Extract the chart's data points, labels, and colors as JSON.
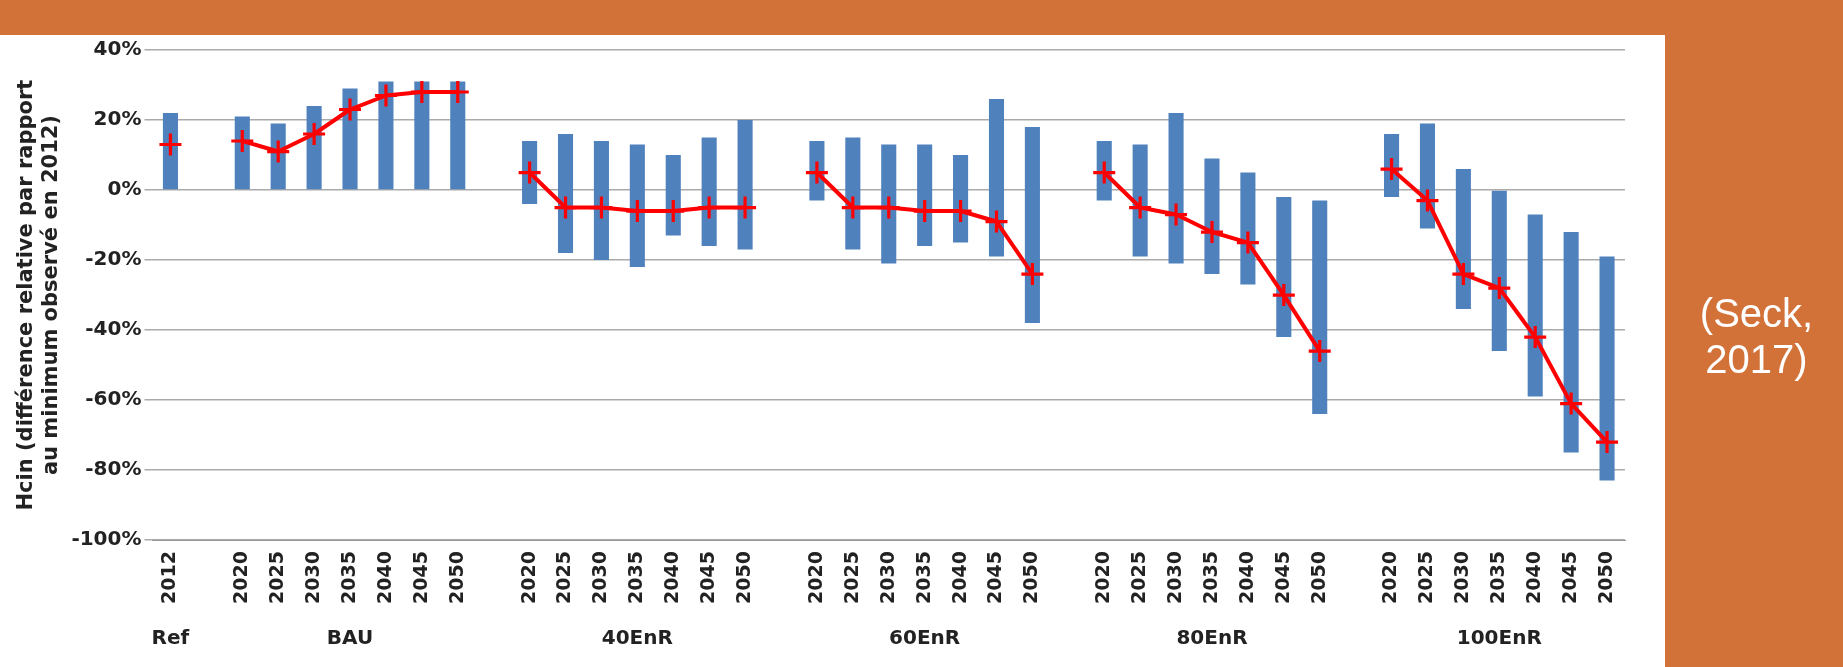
{
  "chart_data": {
    "type": "bar",
    "ylabel": "Hcin (différence relative par rapport\nau minimum observé en 2012)",
    "categories": [
      "2012",
      null,
      "2020",
      "2025",
      "2030",
      "2035",
      "2040",
      "2045",
      "2050",
      null,
      "2020",
      "2025",
      "2030",
      "2035",
      "2040",
      "2045",
      "2050",
      null,
      "2020",
      "2025",
      "2030",
      "2035",
      "2040",
      "2045",
      "2050",
      null,
      "2020",
      "2025",
      "2030",
      "2035",
      "2040",
      "2045",
      "2050",
      null,
      "2020",
      "2025",
      "2030",
      "2035",
      "2040",
      "2045",
      "2050"
    ],
    "series": [
      {
        "color": "#4f81bd",
        "base": [
          0,
          null,
          0,
          0,
          0,
          0,
          0,
          0,
          0,
          null,
          -4,
          -18,
          -20,
          -22,
          -13,
          -16,
          -17,
          null,
          -3,
          -17,
          -21,
          -16,
          -15,
          -19,
          -38,
          null,
          -3,
          -19,
          -21,
          -24,
          -27,
          -42,
          -64,
          null,
          -2,
          -11,
          -34,
          -46,
          -59,
          -75,
          -83
        ],
        "values": [
          22,
          null,
          21,
          19,
          24,
          29,
          31,
          31,
          31,
          null,
          18,
          34,
          34,
          35,
          23,
          31,
          37,
          null,
          17,
          32,
          34,
          29,
          25,
          45,
          56,
          null,
          17,
          32,
          43,
          33,
          32,
          40,
          61,
          null,
          18,
          30,
          40,
          46,
          52,
          63,
          64
        ]
      },
      {
        "type": "line",
        "color": "#ff0000",
        "marker": "cross",
        "values": [
          13,
          null,
          14,
          11,
          16,
          23,
          27,
          28,
          28,
          null,
          5,
          -5,
          -5,
          -6,
          -6,
          -5,
          -5,
          null,
          5,
          -5,
          -5,
          -6,
          -6,
          -9,
          -24,
          null,
          5,
          -5,
          -7,
          -12,
          -15,
          -30,
          -46,
          null,
          6,
          -3,
          -24,
          -28,
          -42,
          -61,
          -72
        ]
      }
    ],
    "ylim": [
      -100,
      40
    ],
    "yticks": [
      {
        "value": -100,
        "label": "-100%"
      },
      {
        "value": -80,
        "label": "-80%"
      },
      {
        "value": -60,
        "label": "-60%"
      },
      {
        "value": -40,
        "label": "-40%"
      },
      {
        "value": -20,
        "label": "-20%"
      },
      {
        "value": 0,
        "label": "0%"
      },
      {
        "value": 20,
        "label": "20%"
      },
      {
        "value": 40,
        "label": "40%"
      }
    ],
    "grid": "y",
    "legend": false,
    "annotations": [
      "Ref",
      "BAU",
      "40EnR",
      "60EnR",
      "80EnR",
      "100EnR",
      "(Seck, 2017)"
    ]
  }
}
